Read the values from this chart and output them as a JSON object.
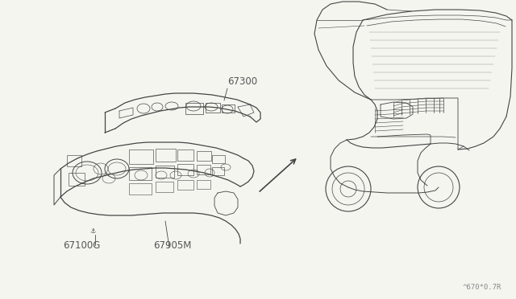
{
  "bg_color": "#f5f5f0",
  "line_color": "#444444",
  "label_color": "#555555",
  "part_code_text": "^670*0.7R",
  "figsize": [
    6.4,
    3.72
  ],
  "dpi": 100
}
